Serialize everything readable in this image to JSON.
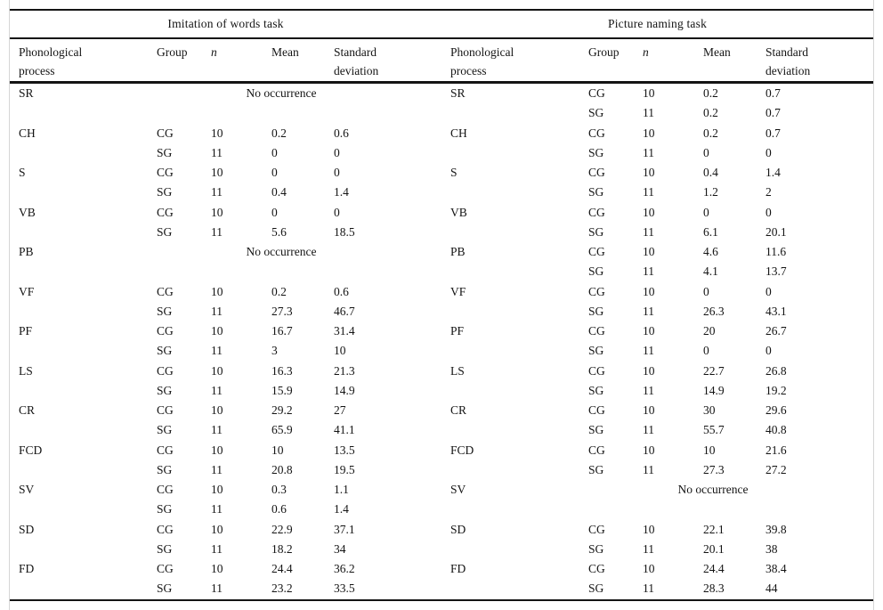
{
  "colors": {
    "background": "#ffffff",
    "text": "#141414",
    "rule": "#141414",
    "page_edge": "#d6d6d6"
  },
  "table": {
    "sections": [
      {
        "title": "Imitation of words task",
        "columns": {
          "process": "Phonological process",
          "group": "Group",
          "n": "n",
          "mean": "Mean",
          "sd": "Standard deviation"
        },
        "processes": [
          {
            "process": "SR",
            "note": "No occurrence"
          },
          {
            "process": "CH",
            "entries": [
              [
                "CG",
                "10",
                "0.2",
                "0.6"
              ],
              [
                "SG",
                "11",
                "0",
                "0"
              ]
            ]
          },
          {
            "process": "S",
            "entries": [
              [
                "CG",
                "10",
                "0",
                "0"
              ],
              [
                "SG",
                "11",
                "0.4",
                "1.4"
              ]
            ]
          },
          {
            "process": "VB",
            "entries": [
              [
                "CG",
                "10",
                "0",
                "0"
              ],
              [
                "SG",
                "11",
                "5.6",
                "18.5"
              ]
            ]
          },
          {
            "process": "PB",
            "note": "No occurrence"
          },
          {
            "process": "VF",
            "entries": [
              [
                "CG",
                "10",
                "0.2",
                "0.6"
              ],
              [
                "SG",
                "11",
                "27.3",
                "46.7"
              ]
            ]
          },
          {
            "process": "PF",
            "entries": [
              [
                "CG",
                "10",
                "16.7",
                "31.4"
              ],
              [
                "SG",
                "11",
                "3",
                "10"
              ]
            ]
          },
          {
            "process": "LS",
            "entries": [
              [
                "CG",
                "10",
                "16.3",
                "21.3"
              ],
              [
                "SG",
                "11",
                "15.9",
                "14.9"
              ]
            ]
          },
          {
            "process": "CR",
            "entries": [
              [
                "CG",
                "10",
                "29.2",
                "27"
              ],
              [
                "SG",
                "11",
                "65.9",
                "41.1"
              ]
            ]
          },
          {
            "process": "FCD",
            "entries": [
              [
                "CG",
                "10",
                "10",
                "13.5"
              ],
              [
                "SG",
                "11",
                "20.8",
                "19.5"
              ]
            ]
          },
          {
            "process": "SV",
            "entries": [
              [
                "CG",
                "10",
                "0.3",
                "1.1"
              ],
              [
                "SG",
                "11",
                "0.6",
                "1.4"
              ]
            ]
          },
          {
            "process": "SD",
            "entries": [
              [
                "CG",
                "10",
                "22.9",
                "37.1"
              ],
              [
                "SG",
                "11",
                "18.2",
                "34"
              ]
            ]
          },
          {
            "process": "FD",
            "entries": [
              [
                "CG",
                "10",
                "24.4",
                "36.2"
              ],
              [
                "SG",
                "11",
                "23.2",
                "33.5"
              ]
            ]
          }
        ]
      },
      {
        "title": "Picture naming task",
        "columns": {
          "process": "Phonological process",
          "group": "Group",
          "n": "n",
          "mean": "Mean",
          "sd": "Standard deviation"
        },
        "processes": [
          {
            "process": "SR",
            "entries": [
              [
                "CG",
                "10",
                "0.2",
                "0.7"
              ],
              [
                "SG",
                "11",
                "0.2",
                "0.7"
              ]
            ]
          },
          {
            "process": "CH",
            "entries": [
              [
                "CG",
                "10",
                "0.2",
                "0.7"
              ],
              [
                "SG",
                "11",
                "0",
                "0"
              ]
            ]
          },
          {
            "process": "S",
            "entries": [
              [
                "CG",
                "10",
                "0.4",
                "1.4"
              ],
              [
                "SG",
                "11",
                "1.2",
                "2"
              ]
            ]
          },
          {
            "process": "VB",
            "entries": [
              [
                "CG",
                "10",
                "0",
                "0"
              ],
              [
                "SG",
                "11",
                "6.1",
                "20.1"
              ]
            ]
          },
          {
            "process": "PB",
            "entries": [
              [
                "CG",
                "10",
                "4.6",
                "11.6"
              ],
              [
                "SG",
                "11",
                "4.1",
                "13.7"
              ]
            ]
          },
          {
            "process": "VF",
            "entries": [
              [
                "CG",
                "10",
                "0",
                "0"
              ],
              [
                "SG",
                "11",
                "26.3",
                "43.1"
              ]
            ]
          },
          {
            "process": "PF",
            "entries": [
              [
                "CG",
                "10",
                "20",
                "26.7"
              ],
              [
                "SG",
                "11",
                "0",
                "0"
              ]
            ]
          },
          {
            "process": "LS",
            "entries": [
              [
                "CG",
                "10",
                "22.7",
                "26.8"
              ],
              [
                "SG",
                "11",
                "14.9",
                "19.2"
              ]
            ]
          },
          {
            "process": "CR",
            "entries": [
              [
                "CG",
                "10",
                "30",
                "29.6"
              ],
              [
                "SG",
                "11",
                "55.7",
                "40.8"
              ]
            ]
          },
          {
            "process": "FCD",
            "entries": [
              [
                "CG",
                "10",
                "10",
                "21.6"
              ],
              [
                "SG",
                "11",
                "27.3",
                "27.2"
              ]
            ]
          },
          {
            "process": "SV",
            "note": "No occurrence"
          },
          {
            "process": "SD",
            "entries": [
              [
                "CG",
                "10",
                "22.1",
                "39.8"
              ],
              [
                "SG",
                "11",
                "20.1",
                "38"
              ]
            ]
          },
          {
            "process": "FD",
            "entries": [
              [
                "CG",
                "10",
                "24.4",
                "38.4"
              ],
              [
                "SG",
                "11",
                "28.3",
                "44"
              ]
            ]
          }
        ]
      }
    ]
  }
}
